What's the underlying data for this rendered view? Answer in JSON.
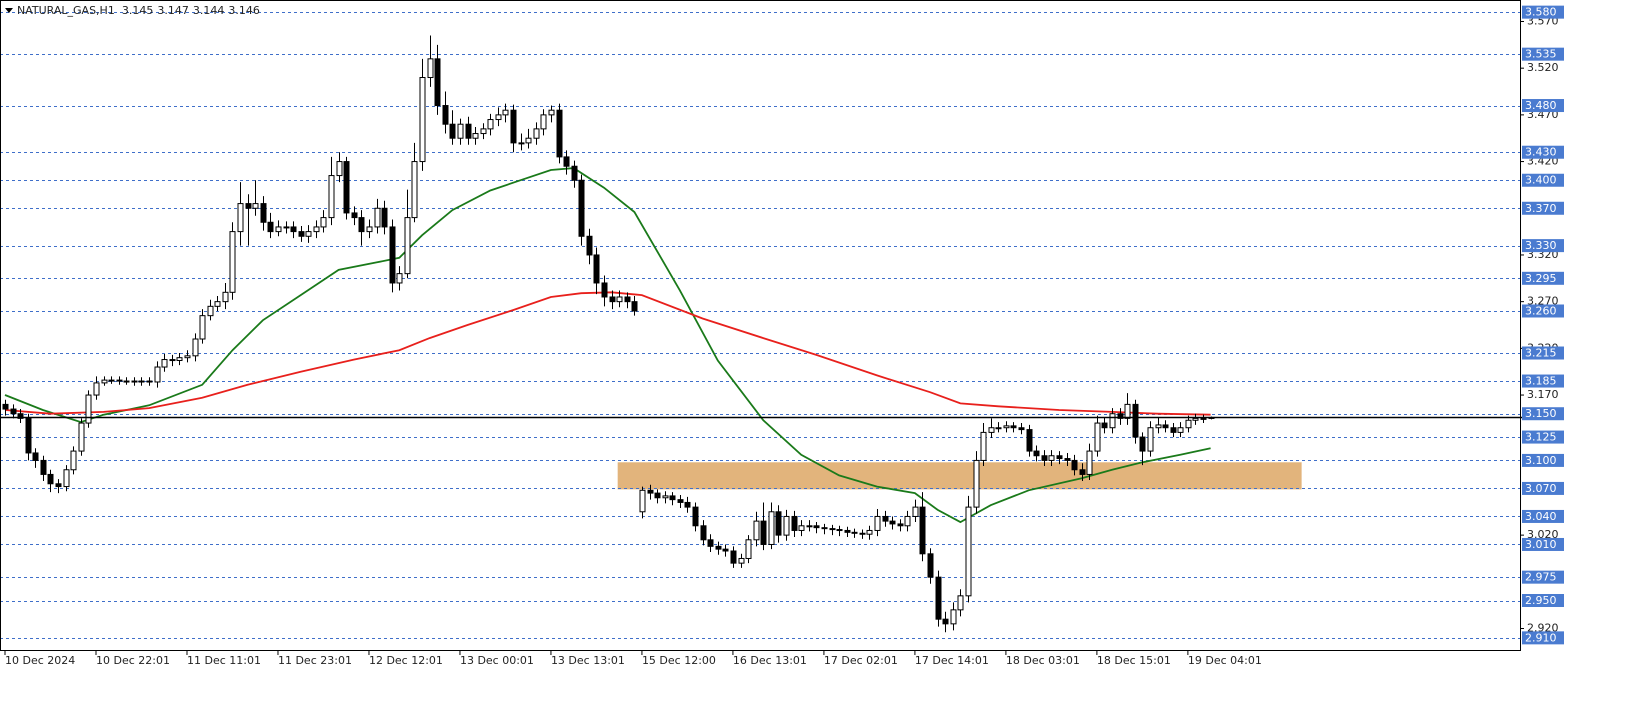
{
  "chart_data": {
    "type": "candlestick",
    "title": "NATURAL_GAS,H1",
    "xlim": [
      -0.66,
      199.8
    ],
    "ylim": [
      2.897,
      3.593
    ],
    "grid": true,
    "up_color": "#ffffff",
    "down_color": "#000000",
    "outline_color": "#000000",
    "level_color": "#4a7bd0",
    "zone": {
      "x": [
        80.8,
        171
      ],
      "y": [
        3.069,
        3.098
      ],
      "color": "#e2b47c"
    },
    "xticks": [
      {
        "value": 0,
        "label": "10 Dec 2024"
      },
      {
        "value": 12,
        "label": "10 Dec 22:01"
      },
      {
        "value": 24,
        "label": "11 Dec 11:01"
      },
      {
        "value": 36,
        "label": "11 Dec 23:01"
      },
      {
        "value": 48,
        "label": "12 Dec 12:01"
      },
      {
        "value": 60,
        "label": "13 Dec 00:01"
      },
      {
        "value": 72,
        "label": "13 Dec 13:01"
      },
      {
        "value": 84,
        "label": "15 Dec 12:00"
      },
      {
        "value": 96,
        "label": "16 Dec 13:01"
      },
      {
        "value": 108,
        "label": "17 Dec 02:01"
      },
      {
        "value": 120,
        "label": "17 Dec 14:01"
      },
      {
        "value": 132,
        "label": "18 Dec 03:01"
      },
      {
        "value": 144,
        "label": "18 Dec 15:01"
      },
      {
        "value": 156,
        "label": "19 Dec 04:01"
      }
    ],
    "yticks": [
      {
        "value": 3.57,
        "label": "3.570"
      },
      {
        "value": 3.52,
        "label": "3.520"
      },
      {
        "value": 3.47,
        "label": "3.470"
      },
      {
        "value": 3.42,
        "label": "3.420"
      },
      {
        "value": 3.32,
        "label": "3.320"
      },
      {
        "value": 3.27,
        "label": "3.270"
      },
      {
        "value": 3.22,
        "label": "3.220"
      },
      {
        "value": 3.17,
        "label": "3.170"
      },
      {
        "value": 3.02,
        "label": "3.020"
      },
      {
        "value": 2.92,
        "label": "2.920"
      }
    ],
    "levels": [
      {
        "value": 3.58,
        "label": "3.580"
      },
      {
        "value": 3.535,
        "label": "3.535"
      },
      {
        "value": 3.48,
        "label": "3.480"
      },
      {
        "value": 3.43,
        "label": "3.430"
      },
      {
        "value": 3.4,
        "label": "3.400"
      },
      {
        "value": 3.37,
        "label": "3.370"
      },
      {
        "value": 3.33,
        "label": "3.330"
      },
      {
        "value": 3.295,
        "label": "3.295"
      },
      {
        "value": 3.26,
        "label": "3.260"
      },
      {
        "value": 3.215,
        "label": "3.215"
      },
      {
        "value": 3.185,
        "label": "3.185"
      },
      {
        "value": 3.15,
        "label": "3.150"
      },
      {
        "value": 3.125,
        "label": "3.125"
      },
      {
        "value": 3.1,
        "label": "3.100"
      },
      {
        "value": 3.07,
        "label": "3.070"
      },
      {
        "value": 3.04,
        "label": "3.040"
      },
      {
        "value": 3.01,
        "label": "3.010"
      },
      {
        "value": 2.975,
        "label": "2.975"
      },
      {
        "value": 2.95,
        "label": "2.950"
      },
      {
        "value": 2.91,
        "label": "2.910"
      }
    ],
    "open": [
      3.16,
      3.155,
      3.15,
      3.145,
      3.108,
      3.1,
      3.085,
      3.075,
      3.072,
      3.09,
      3.11,
      3.14,
      3.17,
      3.183,
      3.186,
      3.186,
      3.185,
      3.185,
      3.184,
      3.185,
      3.184,
      3.2,
      3.208,
      3.207,
      3.21,
      3.212,
      3.23,
      3.255,
      3.265,
      3.27,
      3.28,
      3.345,
      3.375,
      3.37,
      3.375,
      3.355,
      3.345,
      3.35,
      3.35,
      3.345,
      3.34,
      3.345,
      3.35,
      3.36,
      3.405,
      3.42,
      3.365,
      3.36,
      3.345,
      3.35,
      3.37,
      3.35,
      3.29,
      3.3,
      3.36,
      3.42,
      3.51,
      3.53,
      3.48,
      3.46,
      3.445,
      3.46,
      3.445,
      3.45,
      3.455,
      3.465,
      3.47,
      3.475,
      3.44,
      3.44,
      3.445,
      3.455,
      3.47,
      3.475,
      3.425,
      3.415,
      3.4,
      3.34,
      3.32,
      3.29,
      3.275,
      3.27,
      3.275,
      3.27,
      3.045,
      3.068,
      3.065,
      3.06,
      3.062,
      3.058,
      3.055,
      3.05,
      3.03,
      3.015,
      3.008,
      3.005,
      3.003,
      2.99,
      2.995,
      3.015,
      3.035,
      3.01,
      3.045,
      3.02,
      3.04,
      3.025,
      3.03,
      3.03,
      3.028,
      3.027,
      3.026,
      3.025,
      3.023,
      3.022,
      3.021,
      3.025,
      3.04,
      3.035,
      3.032,
      3.03,
      3.04,
      3.05,
      3.0,
      2.975,
      2.93,
      2.925,
      2.94,
      2.955,
      3.05,
      3.1,
      3.13,
      3.135,
      3.135,
      3.137,
      3.135,
      3.133,
      3.11,
      3.105,
      3.1,
      3.105,
      3.102,
      3.1,
      3.09,
      3.085,
      3.11,
      3.14,
      3.135,
      3.15,
      3.145,
      3.16,
      3.125,
      3.11,
      3.135,
      3.138,
      3.135,
      3.13,
      3.135,
      3.143,
      3.145,
      3.145
    ],
    "high": [
      3.165,
      3.16,
      3.155,
      3.15,
      3.113,
      3.105,
      3.09,
      3.08,
      3.095,
      3.115,
      3.145,
      3.175,
      3.19,
      3.19,
      3.19,
      3.19,
      3.189,
      3.189,
      3.189,
      3.189,
      3.206,
      3.214,
      3.213,
      3.215,
      3.218,
      3.236,
      3.262,
      3.272,
      3.276,
      3.29,
      3.355,
      3.398,
      3.385,
      3.4,
      3.383,
      3.365,
      3.357,
      3.356,
      3.356,
      3.351,
      3.352,
      3.357,
      3.368,
      3.425,
      3.43,
      3.425,
      3.372,
      3.368,
      3.358,
      3.38,
      3.378,
      3.358,
      3.308,
      3.39,
      3.44,
      3.53,
      3.555,
      3.545,
      3.495,
      3.475,
      3.466,
      3.468,
      3.457,
      3.461,
      3.471,
      3.478,
      3.482,
      3.481,
      3.45,
      3.455,
      3.462,
      3.476,
      3.48,
      3.482,
      3.432,
      3.421,
      3.406,
      3.348,
      3.328,
      3.298,
      3.282,
      3.282,
      3.28,
      3.276,
      3.072,
      3.074,
      3.069,
      3.067,
      3.066,
      3.063,
      3.061,
      3.055,
      3.036,
      3.021,
      3.013,
      3.01,
      3.008,
      3.0,
      3.02,
      3.045,
      3.055,
      3.055,
      3.052,
      3.047,
      3.046,
      3.036,
      3.036,
      3.034,
      3.032,
      3.031,
      3.03,
      3.029,
      3.027,
      3.026,
      3.03,
      3.048,
      3.046,
      3.04,
      3.037,
      3.046,
      3.058,
      3.066,
      3.006,
      2.982,
      2.938,
      2.948,
      2.962,
      3.062,
      3.11,
      3.14,
      3.145,
      3.141,
      3.142,
      3.141,
      3.14,
      3.138,
      3.116,
      3.111,
      3.111,
      3.11,
      3.108,
      3.106,
      3.097,
      3.118,
      3.148,
      3.146,
      3.156,
      3.156,
      3.172,
      3.165,
      3.13,
      3.142,
      3.146,
      3.143,
      3.14,
      3.141,
      3.148,
      3.15,
      3.149,
      3.147
    ],
    "low": [
      3.148,
      3.145,
      3.14,
      3.1,
      3.092,
      3.078,
      3.066,
      3.065,
      3.067,
      3.085,
      3.105,
      3.135,
      3.165,
      3.18,
      3.182,
      3.181,
      3.181,
      3.18,
      3.18,
      3.18,
      3.178,
      3.195,
      3.201,
      3.202,
      3.205,
      3.206,
      3.225,
      3.25,
      3.26,
      3.262,
      3.272,
      3.33,
      3.33,
      3.362,
      3.346,
      3.338,
      3.34,
      3.343,
      3.338,
      3.334,
      3.333,
      3.338,
      3.344,
      3.352,
      3.398,
      3.358,
      3.352,
      3.33,
      3.338,
      3.343,
      3.342,
      3.28,
      3.282,
      3.295,
      3.355,
      3.41,
      3.5,
      3.47,
      3.45,
      3.438,
      3.438,
      3.438,
      3.438,
      3.444,
      3.448,
      3.458,
      3.462,
      3.43,
      3.432,
      3.434,
      3.438,
      3.448,
      3.462,
      3.418,
      3.406,
      3.392,
      3.33,
      3.31,
      3.278,
      3.265,
      3.262,
      3.264,
      3.263,
      3.255,
      3.038,
      3.058,
      3.054,
      3.054,
      3.052,
      3.049,
      3.044,
      3.024,
      3.009,
      3.002,
      2.999,
      2.997,
      2.985,
      2.985,
      2.99,
      3.008,
      3.004,
      3.005,
      3.012,
      3.014,
      3.018,
      3.019,
      3.024,
      3.022,
      3.021,
      3.02,
      3.019,
      3.018,
      3.017,
      3.016,
      3.015,
      3.019,
      3.029,
      3.026,
      3.024,
      3.024,
      3.034,
      2.992,
      2.968,
      2.922,
      2.916,
      2.918,
      2.933,
      2.948,
      3.043,
      3.094,
      3.124,
      3.13,
      3.13,
      3.13,
      3.128,
      3.104,
      3.099,
      3.094,
      3.094,
      3.096,
      3.094,
      3.084,
      3.078,
      3.079,
      3.104,
      3.129,
      3.129,
      3.138,
      3.138,
      3.118,
      3.095,
      3.104,
      3.129,
      3.13,
      3.125,
      3.125,
      3.13,
      3.138,
      3.14,
      3.144
    ],
    "close": [
      3.155,
      3.15,
      3.145,
      3.108,
      3.1,
      3.085,
      3.075,
      3.072,
      3.09,
      3.11,
      3.14,
      3.17,
      3.183,
      3.186,
      3.186,
      3.185,
      3.185,
      3.184,
      3.185,
      3.184,
      3.2,
      3.208,
      3.207,
      3.21,
      3.212,
      3.23,
      3.255,
      3.265,
      3.27,
      3.28,
      3.345,
      3.375,
      3.37,
      3.375,
      3.355,
      3.345,
      3.35,
      3.35,
      3.345,
      3.34,
      3.345,
      3.35,
      3.36,
      3.405,
      3.42,
      3.365,
      3.36,
      3.345,
      3.35,
      3.37,
      3.35,
      3.29,
      3.3,
      3.36,
      3.42,
      3.51,
      3.53,
      3.48,
      3.46,
      3.445,
      3.46,
      3.445,
      3.45,
      3.455,
      3.465,
      3.47,
      3.475,
      3.44,
      3.44,
      3.445,
      3.455,
      3.47,
      3.475,
      3.425,
      3.415,
      3.4,
      3.34,
      3.32,
      3.29,
      3.275,
      3.27,
      3.275,
      3.27,
      3.26,
      3.068,
      3.065,
      3.06,
      3.062,
      3.058,
      3.055,
      3.05,
      3.03,
      3.015,
      3.008,
      3.005,
      3.003,
      2.99,
      2.995,
      3.015,
      3.035,
      3.01,
      3.045,
      3.02,
      3.04,
      3.025,
      3.03,
      3.03,
      3.028,
      3.027,
      3.026,
      3.025,
      3.023,
      3.022,
      3.021,
      3.025,
      3.04,
      3.035,
      3.032,
      3.03,
      3.04,
      3.05,
      3.0,
      2.975,
      2.93,
      2.925,
      2.94,
      2.955,
      3.05,
      3.1,
      3.13,
      3.135,
      3.135,
      3.137,
      3.135,
      3.133,
      3.11,
      3.105,
      3.1,
      3.105,
      3.102,
      3.1,
      3.09,
      3.085,
      3.11,
      3.14,
      3.135,
      3.15,
      3.145,
      3.16,
      3.125,
      3.11,
      3.135,
      3.138,
      3.135,
      3.13,
      3.135,
      3.143,
      3.145,
      3.145,
      3.146
    ],
    "moving_averages": [
      {
        "color": "#1a7a1a",
        "x": [
          0,
          5,
          10,
          13,
          19,
          26,
          30,
          34,
          39,
          44,
          49,
          52,
          55,
          59,
          64,
          68,
          72,
          75,
          79,
          83,
          89,
          94,
          100,
          105,
          110,
          115,
          120,
          123,
          126,
          130,
          135,
          142,
          146,
          150,
          155,
          159
        ],
        "values": [
          3.17,
          3.154,
          3.141,
          3.149,
          3.159,
          3.181,
          3.218,
          3.25,
          3.277,
          3.304,
          3.312,
          3.317,
          3.341,
          3.368,
          3.389,
          3.4,
          3.411,
          3.413,
          3.392,
          3.366,
          3.282,
          3.207,
          3.143,
          3.106,
          3.084,
          3.072,
          3.065,
          3.047,
          3.034,
          3.052,
          3.068,
          3.081,
          3.09,
          3.098,
          3.106,
          3.113
        ]
      },
      {
        "color": "#e8201c",
        "x": [
          0,
          6,
          13,
          19,
          26,
          32,
          39,
          46,
          52,
          56,
          61,
          67,
          72,
          76,
          80,
          84,
          92,
          100,
          107,
          115,
          122,
          126,
          131,
          139,
          146,
          152,
          159
        ],
        "values": [
          3.154,
          3.15,
          3.152,
          3.156,
          3.167,
          3.181,
          3.195,
          3.208,
          3.218,
          3.231,
          3.245,
          3.261,
          3.275,
          3.279,
          3.28,
          3.277,
          3.252,
          3.231,
          3.213,
          3.191,
          3.173,
          3.161,
          3.158,
          3.154,
          3.152,
          3.15,
          3.149
        ]
      }
    ]
  }
}
